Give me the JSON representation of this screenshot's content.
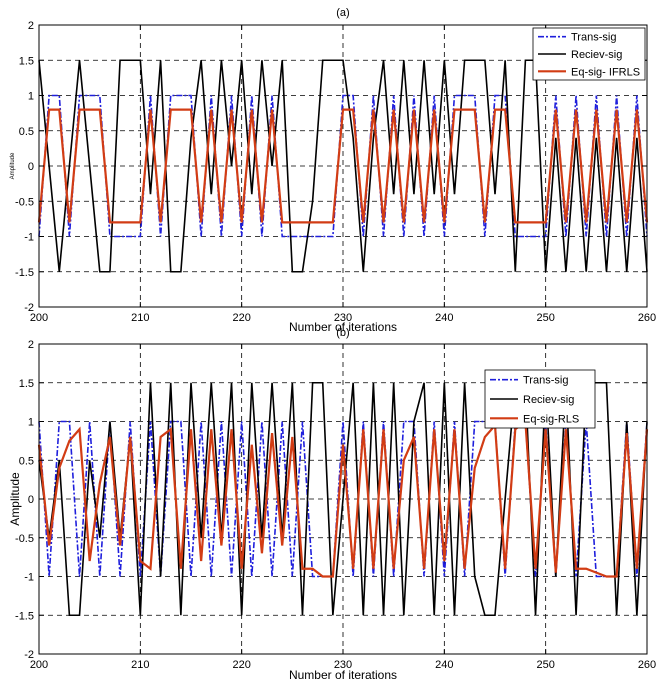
{
  "chart_data": [
    {
      "type": "line",
      "title": "(a)",
      "xlabel": "Number of iterations",
      "ylabel": "Amplitude",
      "xlim": [
        200,
        260
      ],
      "ylim": [
        -2,
        2
      ],
      "xticks": [
        200,
        210,
        220,
        230,
        240,
        250,
        260
      ],
      "yticks": [
        -2,
        -1.5,
        -1,
        -0.5,
        0,
        0.5,
        1,
        1.5,
        2
      ],
      "grid": "dashed",
      "legend_position": "top-right",
      "series": [
        {
          "name": "Trans-sig",
          "color": "#1f1fdc",
          "style": "dash-dot",
          "values": [
            -1,
            1,
            1,
            -1,
            1,
            1,
            1,
            -1,
            -1,
            -1,
            -1,
            1,
            -1,
            1,
            1,
            1,
            -1,
            1,
            -1,
            1,
            -1,
            1,
            -1,
            1,
            -1,
            -1,
            -1,
            -1,
            -1,
            -1,
            1,
            1,
            -1,
            1,
            -1,
            1,
            -1,
            1,
            -1,
            1,
            -1,
            1,
            1,
            1,
            -1,
            1,
            1,
            -1,
            -1,
            -1,
            -1,
            1,
            -1,
            1,
            -1,
            1,
            -1,
            1,
            -1,
            1,
            -1
          ]
        },
        {
          "name": "Reciev-sig",
          "color": "#000000",
          "style": "solid",
          "values": [
            1.5,
            0,
            -1.5,
            0,
            1.5,
            0,
            -1.5,
            -1.5,
            1.5,
            1.5,
            1.5,
            -0.4,
            1.5,
            -1.5,
            -1.5,
            0.4,
            1.5,
            -0.4,
            1.5,
            0,
            1.5,
            -0.4,
            1.5,
            0,
            1.5,
            -1.5,
            -1.5,
            -0.5,
            1.5,
            1.5,
            1.5,
            0.4,
            -1.5,
            0.4,
            1.5,
            -0.4,
            1.5,
            -0.4,
            1.5,
            -0.4,
            1.5,
            -0.4,
            1.5,
            1.5,
            1.5,
            -0.4,
            1.5,
            -1.5,
            1.5,
            1.5,
            -1.5,
            0.4,
            -1.5,
            0.4,
            -1.5,
            0.4,
            -1.5,
            0.4,
            -1.5,
            0.4,
            -1.5
          ]
        },
        {
          "name": "Eq-sig- IFRLS",
          "color": "#d23c14",
          "style": "solid",
          "values": [
            -0.8,
            0.8,
            0.8,
            -0.8,
            0.8,
            0.8,
            0.8,
            -0.8,
            -0.8,
            -0.8,
            -0.8,
            0.8,
            -0.8,
            0.8,
            0.8,
            0.8,
            -0.8,
            0.8,
            -0.8,
            0.8,
            -0.8,
            0.8,
            -0.8,
            0.8,
            -0.8,
            -0.8,
            -0.8,
            -0.8,
            -0.8,
            -0.8,
            0.8,
            0.8,
            -0.8,
            0.8,
            -0.8,
            0.8,
            -0.8,
            0.8,
            -0.8,
            0.8,
            -0.8,
            0.8,
            0.8,
            0.8,
            -0.8,
            0.8,
            0.8,
            -0.8,
            -0.8,
            -0.8,
            -0.8,
            0.8,
            -0.8,
            0.8,
            -0.8,
            0.8,
            -0.8,
            0.8,
            -0.8,
            0.8,
            -0.8
          ]
        }
      ]
    },
    {
      "type": "line",
      "title": "(b)",
      "xlabel": "Number of iterations",
      "ylabel": "Amplitude",
      "xlim": [
        200,
        260
      ],
      "ylim": [
        -2,
        2
      ],
      "xticks": [
        200,
        210,
        220,
        230,
        240,
        250,
        260
      ],
      "yticks": [
        -2,
        -1.5,
        -1,
        -0.5,
        0,
        0.5,
        1,
        1.5,
        2
      ],
      "grid": "dashed",
      "legend_position": "top-right",
      "series": [
        {
          "name": "Trans-sig",
          "color": "#1f1fdc",
          "style": "dash-dot",
          "values": [
            1,
            -1,
            1,
            1,
            -1,
            1,
            -1,
            1,
            -1,
            1,
            -1,
            1,
            -1,
            1,
            1,
            -1,
            1,
            -1,
            1,
            -1,
            1,
            -1,
            1,
            -1,
            1,
            -1,
            1,
            -1,
            -1,
            -1,
            1,
            -1,
            1,
            -1,
            1,
            -1,
            1,
            1,
            -1,
            1,
            -1,
            1,
            -1,
            1,
            1,
            1,
            -1,
            1,
            1,
            -1,
            1,
            -1,
            1,
            -1,
            1,
            -1,
            -1,
            -1,
            1,
            -1,
            1
          ]
        },
        {
          "name": "Reciev-sig",
          "color": "#000000",
          "style": "solid",
          "values": [
            0.5,
            -0.5,
            0.5,
            -1.5,
            -1.5,
            0.5,
            -0.5,
            1,
            -0.5,
            0.8,
            -1.5,
            1.5,
            -1,
            1.5,
            -1.5,
            1.5,
            -0.5,
            1.5,
            -0.5,
            1.5,
            -1.5,
            1.5,
            -0.5,
            1.5,
            -0.5,
            1.5,
            -1.5,
            1.5,
            1.5,
            -1.5,
            0,
            1.5,
            -1.5,
            1.5,
            -1.5,
            1.5,
            -1.5,
            1,
            1.5,
            -1.5,
            1.5,
            -1.5,
            1.5,
            -1,
            -1.5,
            -1.5,
            0,
            1.5,
            1.5,
            -1.5,
            1.5,
            -1,
            1.5,
            -1.5,
            1.5,
            1.5,
            1.5,
            -1.5,
            1,
            -1.5,
            1
          ]
        },
        {
          "name": "Eq-sig-RLS",
          "color": "#d23c14",
          "style": "solid",
          "values": [
            0.7,
            -0.6,
            0.4,
            0.75,
            0.9,
            -0.8,
            0.2,
            0.8,
            -0.6,
            0.8,
            -0.8,
            -0.9,
            0.8,
            0.9,
            -0.9,
            0.9,
            -0.8,
            0.9,
            -0.6,
            0.9,
            -0.9,
            0.7,
            -0.7,
            0.85,
            -0.6,
            0.8,
            -0.9,
            -0.9,
            -1.0,
            -1.0,
            0.7,
            -0.9,
            0.9,
            -0.9,
            0.9,
            -0.9,
            0.5,
            0.8,
            -0.9,
            0.9,
            -0.8,
            0.9,
            -0.9,
            0.4,
            0.8,
            0.95,
            -0.9,
            0.9,
            1.0,
            -0.9,
            0.9,
            -0.95,
            0.9,
            -0.9,
            -0.9,
            -0.95,
            -1.0,
            -1.0,
            0.85,
            -0.9,
            0.9
          ]
        }
      ]
    }
  ]
}
